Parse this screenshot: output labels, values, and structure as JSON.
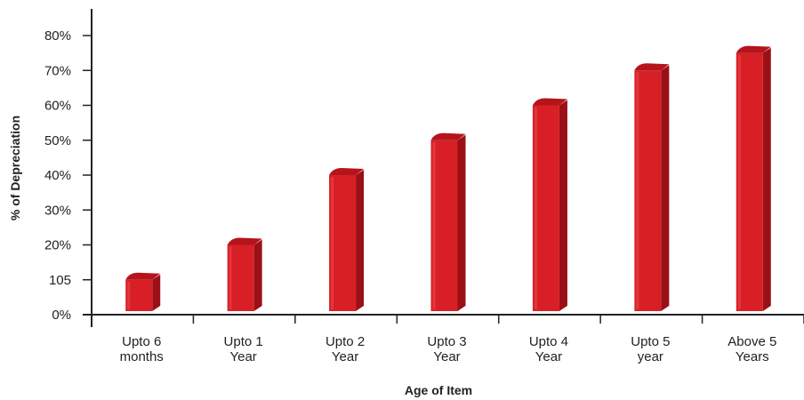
{
  "chart_data": {
    "type": "bar",
    "categories": [
      [
        "Upto 6",
        "months"
      ],
      [
        "Upto 1",
        "Year"
      ],
      [
        "Upto 2",
        "Year"
      ],
      [
        "Upto 3",
        "Year"
      ],
      [
        "Upto 4",
        "Year"
      ],
      [
        "Upto 5",
        "year"
      ],
      [
        "Above 5",
        "Years"
      ]
    ],
    "values": [
      10,
      20,
      40,
      50,
      60,
      70,
      75
    ],
    "xlabel": "Age of Item",
    "ylabel": "% of Depreciation",
    "ylim": [
      0,
      80
    ],
    "yticks": [
      "0%",
      "105",
      "20%",
      "30%",
      "40%",
      "50%",
      "60%",
      "70%",
      "80%"
    ],
    "grid": false,
    "colors": {
      "bar_front": "#d81f26",
      "bar_side": "#9a1016",
      "bar_top": "#b5141b",
      "axis": "#222222"
    }
  }
}
